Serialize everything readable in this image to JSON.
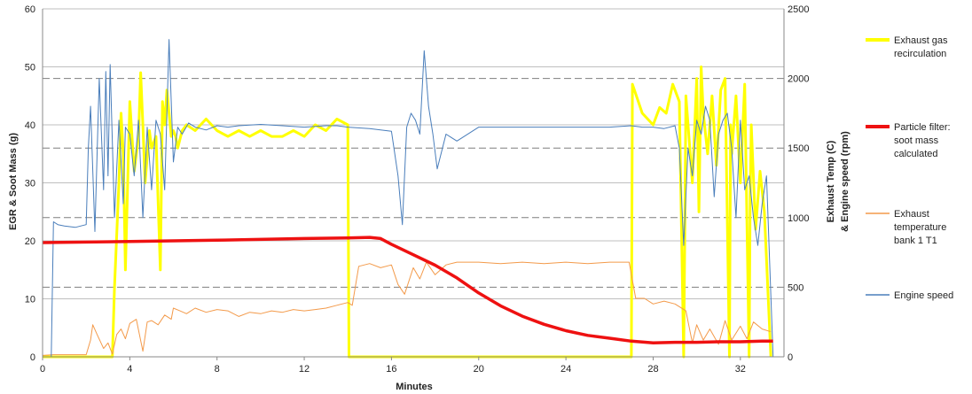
{
  "chart_data": {
    "type": "line",
    "xlabel": "Minutes",
    "ylabel_left": "EGR & Soot Mass (g)",
    "ylabel_right_line1": "Exhaust Temp (C)",
    "ylabel_right_line2": "& Engine speed (rpm)",
    "xlim": [
      0,
      34
    ],
    "ylim_left": [
      0,
      60
    ],
    "ylim_right": [
      0,
      2500
    ],
    "x_ticks": [
      0,
      4,
      8,
      12,
      16,
      20,
      24,
      28,
      32
    ],
    "y_left_ticks": [
      0,
      10,
      20,
      30,
      40,
      50,
      60
    ],
    "y_right_ticks": [
      0,
      500,
      1000,
      1500,
      2000,
      2500
    ],
    "series": [
      {
        "name": "Exhaust gas recirculation",
        "axis": "left",
        "color": "#FFFF00",
        "width": 3,
        "x": [
          0,
          3.2,
          3.3,
          3.5,
          3.6,
          3.7,
          3.8,
          4.0,
          4.2,
          4.4,
          4.5,
          4.6,
          4.7,
          4.9,
          5.0,
          5.2,
          5.4,
          5.5,
          5.6,
          5.7,
          5.9,
          6.0,
          6.1,
          6.2,
          6.4,
          6.6,
          7.0,
          7.5,
          8.0,
          8.5,
          9.0,
          9.5,
          10.0,
          10.5,
          11.0,
          11.5,
          12.0,
          12.5,
          13.0,
          13.5,
          14.0,
          14.05,
          27.0,
          27.05,
          27.5,
          28.0,
          28.3,
          28.6,
          28.9,
          29.2,
          29.4,
          29.45,
          29.5,
          29.8,
          30.0,
          30.1,
          30.2,
          30.3,
          30.5,
          30.7,
          30.9,
          31.1,
          31.3,
          31.5,
          31.55,
          31.6,
          31.8,
          32.0,
          32.2,
          32.4,
          32.45,
          32.5,
          32.7,
          32.9,
          33.1,
          33.4
        ],
        "y": [
          0,
          0,
          12,
          30,
          42,
          35,
          15,
          44,
          32,
          38,
          49,
          40,
          30,
          39,
          36,
          38,
          15,
          44,
          40,
          46,
          38,
          39,
          38,
          36,
          39,
          40,
          39,
          41,
          39,
          38,
          39,
          38,
          39,
          38,
          38,
          39,
          38,
          40,
          39,
          41,
          40,
          0,
          0,
          47,
          42,
          40,
          43,
          42,
          47,
          44,
          0,
          20,
          45,
          30,
          48,
          25,
          50,
          42,
          35,
          45,
          33,
          46,
          48,
          0,
          40,
          35,
          45,
          30,
          47,
          0,
          28,
          40,
          22,
          32,
          25,
          0
        ]
      },
      {
        "name": "Particle filter: soot mass calculated",
        "axis": "left",
        "color": "#EE1111",
        "width": 3.5,
        "x": [
          0,
          4,
          8,
          12,
          14,
          15,
          15.5,
          16,
          17,
          18,
          19,
          20,
          21,
          22,
          23,
          24,
          25,
          26,
          27,
          28,
          29,
          30,
          31,
          32,
          33,
          33.5
        ],
        "y": [
          19.7,
          19.9,
          20.1,
          20.4,
          20.5,
          20.6,
          20.4,
          19.4,
          17.6,
          15.8,
          13.6,
          11.0,
          8.8,
          7.0,
          5.6,
          4.5,
          3.7,
          3.2,
          2.7,
          2.4,
          2.5,
          2.5,
          2.6,
          2.6,
          2.7,
          2.7
        ]
      },
      {
        "name": "Exhaust temperature bank 1 T1",
        "axis": "right",
        "color": "#F39A4A",
        "width": 1,
        "x": [
          0,
          0.5,
          1,
          2,
          2.2,
          2.3,
          2.5,
          2.8,
          3.0,
          3.2,
          3.4,
          3.6,
          3.8,
          4.0,
          4.3,
          4.6,
          4.8,
          5.0,
          5.3,
          5.6,
          5.9,
          6.0,
          6.3,
          6.6,
          7.0,
          7.5,
          8.0,
          8.5,
          9.0,
          9.5,
          10.0,
          10.5,
          11.0,
          11.5,
          12.0,
          12.5,
          13.0,
          13.5,
          14.0,
          14.2,
          14.5,
          15.0,
          15.5,
          16.0,
          16.3,
          16.6,
          17.0,
          17.3,
          17.6,
          18.0,
          18.5,
          19.0,
          20.0,
          21.0,
          22.0,
          23.0,
          24.0,
          25.0,
          26.0,
          26.9,
          27.2,
          27.6,
          28.0,
          28.5,
          29.0,
          29.5,
          29.8,
          30.0,
          30.3,
          30.6,
          31.0,
          31.3,
          31.6,
          32.0,
          32.3,
          32.6,
          33.0,
          33.4
        ],
        "y": [
          10,
          15,
          15,
          15,
          120,
          230,
          160,
          60,
          100,
          20,
          160,
          200,
          130,
          240,
          270,
          40,
          250,
          260,
          230,
          300,
          270,
          350,
          330,
          310,
          350,
          320,
          340,
          330,
          290,
          320,
          310,
          330,
          320,
          340,
          330,
          340,
          350,
          370,
          390,
          370,
          650,
          670,
          640,
          660,
          520,
          450,
          640,
          560,
          680,
          590,
          660,
          680,
          680,
          670,
          680,
          670,
          680,
          670,
          680,
          680,
          420,
          420,
          380,
          400,
          380,
          330,
          100,
          230,
          120,
          200,
          90,
          260,
          120,
          220,
          130,
          250,
          200,
          180
        ]
      },
      {
        "name": "Engine speed",
        "axis": "right",
        "color": "#4A7EBB",
        "width": 1,
        "x": [
          0,
          0.4,
          0.5,
          0.7,
          1.0,
          1.5,
          2.0,
          2.1,
          2.2,
          2.4,
          2.6,
          2.8,
          2.9,
          3.0,
          3.1,
          3.3,
          3.5,
          3.7,
          3.8,
          4.0,
          4.2,
          4.4,
          4.6,
          4.8,
          5.0,
          5.2,
          5.4,
          5.6,
          5.8,
          6.0,
          6.2,
          6.4,
          6.7,
          7.0,
          7.5,
          8.0,
          8.5,
          9.0,
          10.0,
          11.0,
          12.0,
          13.0,
          13.5,
          14.0,
          15.0,
          16.0,
          16.3,
          16.5,
          16.7,
          16.9,
          17.1,
          17.3,
          17.5,
          17.7,
          17.9,
          18.1,
          18.5,
          19.0,
          20.0,
          22.0,
          24.0,
          26.0,
          27.0,
          27.5,
          28.0,
          28.5,
          29.0,
          29.2,
          29.4,
          29.6,
          29.8,
          30.0,
          30.2,
          30.4,
          30.6,
          30.8,
          31.0,
          31.2,
          31.4,
          31.6,
          31.8,
          32.0,
          32.2,
          32.4,
          32.6,
          32.8,
          33.0,
          33.2,
          33.5
        ],
        "y": [
          0,
          0,
          970,
          950,
          940,
          930,
          950,
          1500,
          1800,
          900,
          2000,
          1200,
          2050,
          1300,
          2100,
          1000,
          1700,
          1100,
          1650,
          1600,
          1300,
          1700,
          1000,
          1650,
          1200,
          1700,
          1600,
          1200,
          2280,
          1400,
          1650,
          1600,
          1680,
          1650,
          1630,
          1660,
          1650,
          1660,
          1670,
          1660,
          1650,
          1660,
          1660,
          1650,
          1640,
          1620,
          1300,
          950,
          1650,
          1750,
          1700,
          1600,
          2200,
          1800,
          1600,
          1350,
          1600,
          1550,
          1650,
          1650,
          1650,
          1650,
          1660,
          1650,
          1650,
          1640,
          1660,
          1500,
          800,
          1500,
          1300,
          1700,
          1600,
          1800,
          1700,
          1150,
          1600,
          1700,
          1750,
          1500,
          1000,
          1700,
          1200,
          1300,
          1000,
          800,
          1100,
          1300,
          0
        ]
      }
    ],
    "legend": [
      {
        "label_lines": [
          "Exhaust gas",
          "recirculation"
        ],
        "color": "#FFFF00"
      },
      {
        "label_lines": [
          "Particle filter:",
          "soot mass",
          "calculated"
        ],
        "color": "#EE1111"
      },
      {
        "label_lines": [
          "Exhaust",
          "temperature",
          "bank 1 T1"
        ],
        "color": "#F39A4A"
      },
      {
        "label_lines": [
          "Engine speed"
        ],
        "color": "#4A7EBB"
      }
    ],
    "grid": true,
    "legend_position": "right"
  }
}
